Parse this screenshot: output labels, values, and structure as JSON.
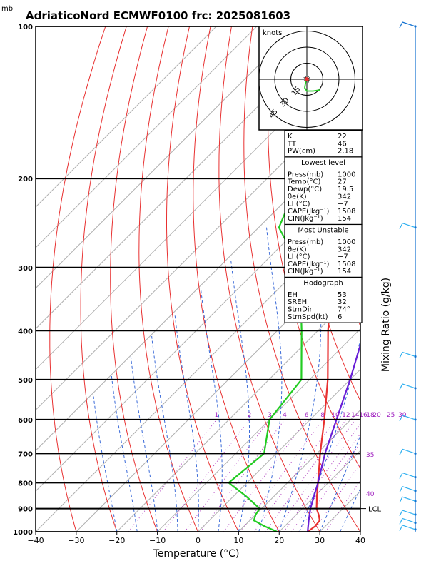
{
  "chart_data": {
    "type": "line",
    "title": "AdriaticoNord ECMWF0100 frc: 2025081603",
    "y_unit_label": "mb",
    "xlabel": "Temperature (°C)",
    "right_label": "Mixing Ratio (g/kg)",
    "x_ticks": [
      "−40",
      "−30",
      "−20",
      "−10",
      "0",
      "10",
      "20",
      "30",
      "40"
    ],
    "y_ticks": [
      "100",
      "200",
      "300",
      "400",
      "500",
      "600",
      "700",
      "800",
      "900",
      "1000"
    ],
    "xlim": [
      -40,
      40
    ],
    "ylim": [
      1000,
      100
    ],
    "log_pressure_axis": true,
    "skew_deg_per_mb_decade": true,
    "mixing_ratio_labels": [
      "1",
      "2",
      "3",
      "4",
      "6",
      "8",
      "10",
      "12",
      "14",
      "16",
      "18",
      "20",
      "25",
      "30"
    ],
    "wetbulb_labels": [
      "35",
      "40"
    ],
    "lcl_label": "LCL",
    "lcl_pressure": 900,
    "series": [
      {
        "name": "Temperature",
        "color": "#e83030",
        "points": [
          [
            1000,
            27
          ],
          [
            975,
            27.5
          ],
          [
            950,
            27.2
          ],
          [
            925,
            25.5
          ],
          [
            900,
            23.5
          ],
          [
            850,
            20.5
          ],
          [
            800,
            17.5
          ],
          [
            700,
            10.8
          ],
          [
            600,
            3.5
          ],
          [
            500,
            -5.5
          ],
          [
            400,
            -17.5
          ],
          [
            300,
            -32
          ],
          [
            250,
            -42
          ],
          [
            200,
            -52
          ],
          [
            150,
            -62
          ],
          [
            100,
            -72
          ]
        ]
      },
      {
        "name": "Dewpoint",
        "color": "#22cc22",
        "points": [
          [
            1000,
            19.5
          ],
          [
            975,
            15
          ],
          [
            950,
            11
          ],
          [
            925,
            10
          ],
          [
            900,
            9.5
          ],
          [
            850,
            3
          ],
          [
            800,
            -4.5
          ],
          [
            700,
            -3
          ],
          [
            600,
            -10
          ],
          [
            500,
            -12
          ],
          [
            400,
            -24
          ],
          [
            300,
            -40
          ],
          [
            250,
            -55
          ],
          [
            200,
            -62
          ],
          [
            150,
            -70
          ],
          [
            100,
            -78
          ]
        ]
      },
      {
        "name": "Parcel",
        "color": "#6a1fd6",
        "points": [
          [
            1000,
            27
          ],
          [
            950,
            24.5
          ],
          [
            900,
            22
          ],
          [
            850,
            19.8
          ],
          [
            800,
            17.5
          ],
          [
            700,
            12
          ],
          [
            600,
            6.5
          ],
          [
            500,
            0
          ],
          [
            400,
            -8.5
          ],
          [
            300,
            -21
          ],
          [
            250,
            -30
          ],
          [
            200,
            -40
          ],
          [
            150,
            -53
          ],
          [
            120,
            -60
          ]
        ]
      }
    ],
    "hodograph": {
      "unit_label": "knots",
      "ring_labels": [
        "15",
        "30",
        "45"
      ],
      "ring_speeds": [
        15,
        30,
        45
      ],
      "trace_kt": [
        [
          0,
          0
        ],
        [
          -1,
          -2
        ],
        [
          -2,
          -8
        ],
        [
          0,
          -11
        ],
        [
          6,
          -11
        ],
        [
          12,
          -10
        ]
      ]
    },
    "indices": {
      "top": [
        [
          "K",
          "22"
        ],
        [
          "TT",
          "46"
        ],
        [
          "PW(cm)",
          "2.18"
        ]
      ],
      "lowest_title": "Lowest level",
      "lowest": [
        [
          "Press(mb)",
          "1000"
        ],
        [
          "Temp(°C)",
          "27"
        ],
        [
          "Dewp(°C)",
          "19.5"
        ],
        [
          "θe(K)",
          "342"
        ],
        [
          "LI (°C)",
          "−7"
        ],
        [
          "CAPE(Jkg⁻¹)",
          "1508"
        ],
        [
          "CIN(Jkg⁻¹)",
          "154"
        ]
      ],
      "unstable_title": "Most Unstable",
      "unstable": [
        [
          "Press(mb)",
          "1000"
        ],
        [
          "θe(K)",
          "342"
        ],
        [
          "LI (°C)",
          "−7"
        ],
        [
          "CAPE(Jkg⁻¹)",
          "1508"
        ],
        [
          "CIN(Jkg⁻¹)",
          "154"
        ]
      ],
      "hodo_title": "Hodograph",
      "hodo": [
        [
          "EH",
          "53"
        ],
        [
          "SREH",
          "32"
        ],
        [
          "StmDir",
          "74°"
        ],
        [
          "StmSpd(kt)",
          "6"
        ]
      ]
    },
    "wind_barbs": [
      {
        "pressure": 100,
        "color": "#1070d0"
      },
      {
        "pressure": 250,
        "color": "#30b0f0"
      },
      {
        "pressure": 450,
        "color": "#30b0f0"
      },
      {
        "pressure": 520,
        "color": "#30b0f0"
      },
      {
        "pressure": 600,
        "color": "#30b0f0"
      },
      {
        "pressure": 700,
        "color": "#30b0f0"
      },
      {
        "pressure": 780,
        "color": "#30b0f0"
      },
      {
        "pressure": 830,
        "color": "#30b0f0"
      },
      {
        "pressure": 870,
        "color": "#30b0f0"
      },
      {
        "pressure": 925,
        "color": "#30b0f0"
      },
      {
        "pressure": 960,
        "color": "#30b0f0"
      },
      {
        "pressure": 990,
        "color": "#30b0f0"
      }
    ]
  }
}
